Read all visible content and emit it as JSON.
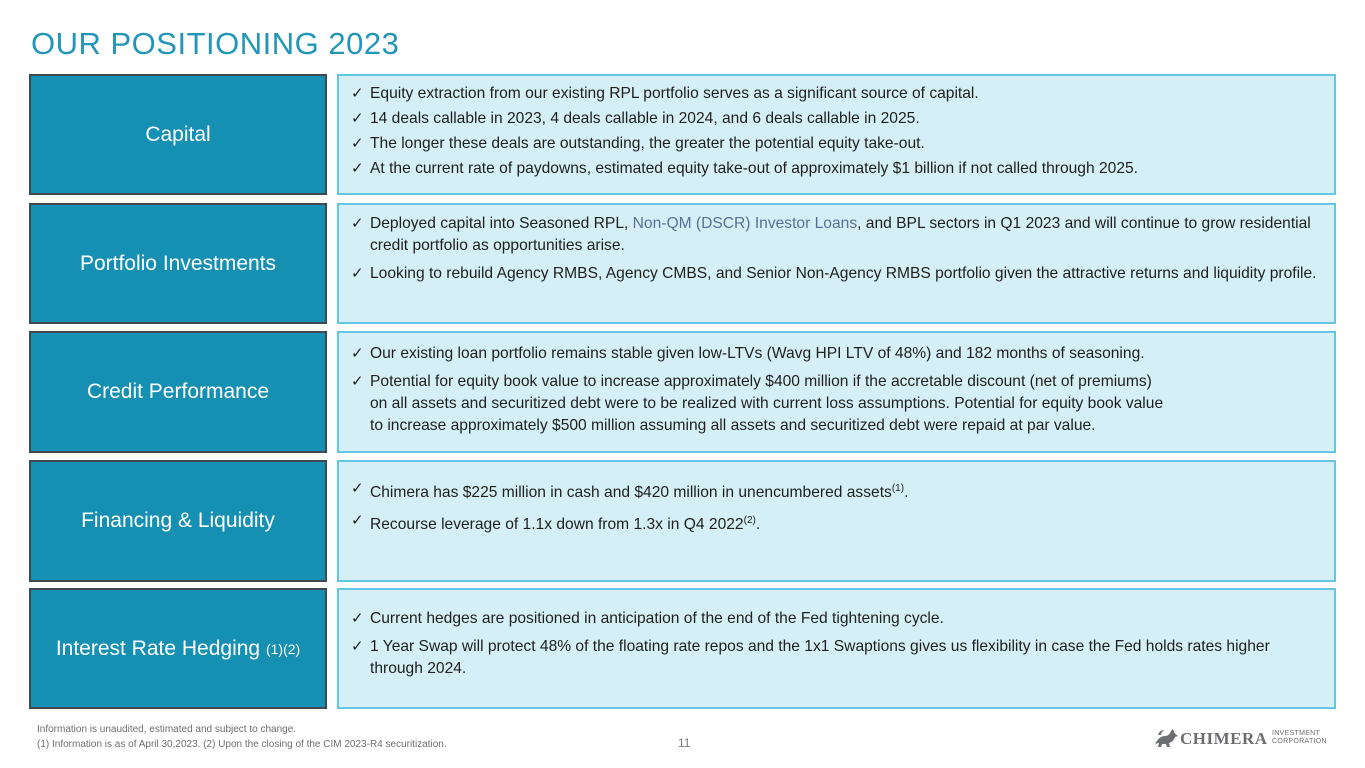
{
  "title": "OUR POSITIONING 2023",
  "rows": [
    {
      "label": "Capital",
      "bullets": [
        "Equity extraction from our existing RPL portfolio serves as a significant source of capital.",
        "14 deals callable in 2023, 4 deals callable in 2024, and 6 deals callable in 2025.",
        "The longer these deals are outstanding, the greater the potential equity take-out.",
        "At the current rate of paydowns, estimated equity take-out of approximately $1 billion if not called through 2025."
      ]
    },
    {
      "label": "Portfolio Investments",
      "bullet1": {
        "pre": "Deployed capital into Seasoned RPL, ",
        "link": "Non-QM (DSCR) Investor Loans",
        "post": ", and BPL sectors in Q1 2023 and will continue to grow residential credit portfolio as opportunities arise."
      },
      "bullet2": "Looking to rebuild Agency RMBS, Agency CMBS, and Senior Non-Agency RMBS portfolio given the attractive returns and liquidity profile."
    },
    {
      "label": "Credit Performance",
      "bullet1": "Our existing loan portfolio remains stable given low-LTVs (Wavg HPI LTV of 48%) and 182 months of seasoning.",
      "bullet2_lines": [
        "Potential for equity book value to increase approximately $400 million if the accretable discount (net of premiums)",
        "on all assets and securitized debt were to be realized with current loss assumptions. Potential for equity book value",
        "to increase approximately $500 million assuming all assets and securitized debt were repaid at par value."
      ]
    },
    {
      "label": "Financing & Liquidity",
      "bullet1": {
        "text": "Chimera has $225 million in cash and $420 million in unencumbered assets",
        "sup": "(1)",
        "tail": "."
      },
      "bullet2": {
        "text": "Recourse leverage of 1.1x down from 1.3x in Q4 2022",
        "sup": "(2)",
        "tail": "."
      }
    },
    {
      "label": "Interest Rate Hedging",
      "label_sup": "(1)(2)",
      "bullet1": "Current hedges are positioned in anticipation of the end of the Fed tightening cycle.",
      "bullet2": "1 Year Swap will protect 48% of the floating rate repos and the 1x1 Swaptions gives us flexibility in case the Fed holds rates higher through 2024."
    }
  ],
  "check_glyph": "✓",
  "footnote": {
    "line1": "Information is unaudited, estimated and subject to change.",
    "line2": "(1) Information is as of April 30,2023. (2) Upon the closing of the CIM 2023-R4 securitization."
  },
  "page_number": "11",
  "logo": {
    "brand": "CHIMERA",
    "sub1": "INVESTMENT",
    "sub2": "CORPORATION"
  },
  "colors": {
    "title": "#2296ba",
    "label_bg": "#1590b2",
    "content_bg": "#d5eff6",
    "content_border": "#63c7e3",
    "link": "#5a6f95"
  }
}
